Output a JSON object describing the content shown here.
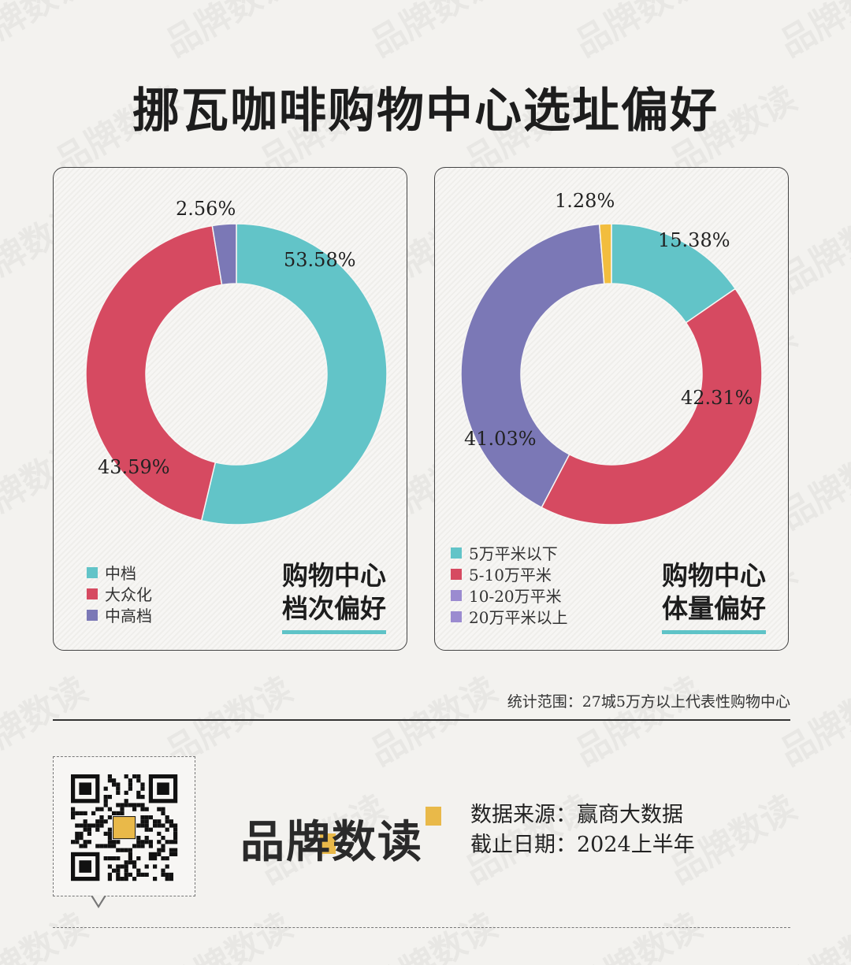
{
  "title": "挪瓦咖啡购物中心选址偏好",
  "chart_data": [
    {
      "type": "pie",
      "heading_line1": "购物中心",
      "heading_line2": "档次偏好",
      "categories": [
        "中档",
        "大众化",
        "中高档"
      ],
      "values": [
        53.58,
        43.59,
        2.56
      ],
      "labels": [
        "53.58%",
        "43.59%",
        "2.56%"
      ],
      "colors": [
        "#62c4c8",
        "#d64a61",
        "#7b78b6"
      ],
      "hole": true
    },
    {
      "type": "pie",
      "heading_line1": "购物中心",
      "heading_line2": "体量偏好",
      "categories": [
        "5万平米以下",
        "5-10万平米",
        "10-20万平米",
        "20万平米以上"
      ],
      "values": [
        15.38,
        42.31,
        41.03,
        1.28
      ],
      "labels": [
        "15.38%",
        "42.31%",
        "41.03%",
        "1.28%"
      ],
      "colors": [
        "#62c4c8",
        "#d64a61",
        "#7b78b6",
        "#f2bd3e"
      ],
      "legend_colors": [
        "#62c4c8",
        "#d64a61",
        "#9b8bd0",
        "#9b8bd0"
      ],
      "hole": true
    }
  ],
  "scope_note": "统计范围：27城5万方以上代表性购物中心",
  "brand": "品牌数读",
  "source_line": "数据来源：赢商大数据",
  "date_line": "截止日期：2024上半年",
  "watermark_text": "品牌数读"
}
